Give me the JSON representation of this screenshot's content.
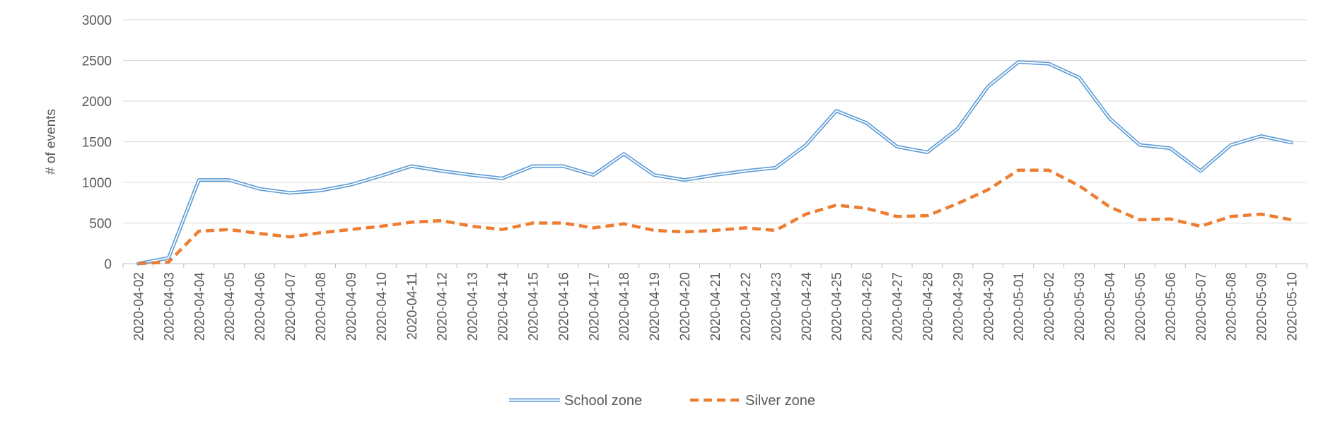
{
  "chart_data": {
    "type": "line",
    "title": "",
    "xlabel": "",
    "ylabel": "# of events",
    "ylim": [
      0,
      3000
    ],
    "yticks": [
      0,
      500,
      1000,
      1500,
      2000,
      2500,
      3000
    ],
    "grid": true,
    "legend_position": "bottom",
    "x": [
      "2020-04-02",
      "2020-04-03",
      "2020-04-04",
      "2020-04-05",
      "2020-04-06",
      "2020-04-07",
      "2020-04-08",
      "2020-04-09",
      "2020-04-10",
      "2020-04-11",
      "2020-04-12",
      "2020-04-13",
      "2020-04-14",
      "2020-04-15",
      "2020-04-16",
      "2020-04-17",
      "2020-04-18",
      "2020-04-19",
      "2020-04-20",
      "2020-04-21",
      "2020-04-22",
      "2020-04-23",
      "2020-04-24",
      "2020-04-25",
      "2020-04-26",
      "2020-04-27",
      "2020-04-28",
      "2020-04-29",
      "2020-04-30",
      "2020-05-01",
      "2020-05-02",
      "2020-05-03",
      "2020-05-04",
      "2020-05-05",
      "2020-05-06",
      "2020-05-07",
      "2020-05-08",
      "2020-05-09",
      "2020-05-10"
    ],
    "series": [
      {
        "name": "School zone",
        "style": "double-line",
        "color": "#5b9bd5",
        "values": [
          0,
          70,
          1030,
          1030,
          920,
          870,
          900,
          970,
          1080,
          1200,
          1140,
          1090,
          1050,
          1200,
          1200,
          1090,
          1350,
          1090,
          1030,
          1090,
          1140,
          1180,
          1460,
          1880,
          1730,
          1440,
          1370,
          1660,
          2180,
          2480,
          2460,
          2290,
          1790,
          1460,
          1420,
          1140,
          1460,
          1570,
          1490
        ]
      },
      {
        "name": "Silver zone",
        "style": "dashed",
        "color": "#ed7d31",
        "values": [
          0,
          20,
          400,
          420,
          370,
          330,
          380,
          420,
          460,
          510,
          530,
          460,
          420,
          500,
          500,
          440,
          490,
          410,
          390,
          410,
          440,
          410,
          610,
          720,
          680,
          580,
          590,
          740,
          910,
          1150,
          1150,
          960,
          700,
          540,
          550,
          460,
          580,
          610,
          540
        ]
      }
    ]
  }
}
